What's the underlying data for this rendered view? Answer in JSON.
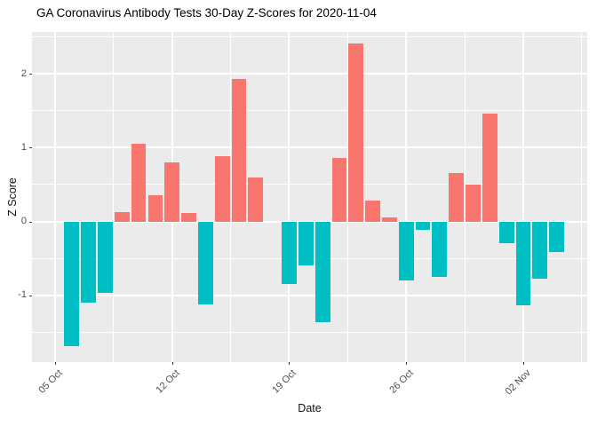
{
  "title": "GA Coronavirus Antibody Tests 30-Day Z-Scores for 2020-11-04",
  "chart_data": {
    "type": "bar",
    "title": "GA Coronavirus Antibody Tests 30-Day Z-Scores for 2020-11-04",
    "xlabel": "Date",
    "ylabel": "Z Score",
    "x_tick_labels": [
      "05 Oct",
      "12 Oct",
      "19 Oct",
      "26 Oct",
      "02 Nov"
    ],
    "y_tick_labels": [
      "-1",
      "0",
      "1",
      "2"
    ],
    "y_tick_values": [
      -1,
      0,
      1,
      2
    ],
    "y_minor_tick_values": [
      -1.5,
      -0.5,
      0.5,
      1.5,
      2.5
    ],
    "ylim": [
      -1.91,
      2.57
    ],
    "grid": "white major and minor gridlines on gray panel",
    "legend_position": "none",
    "dates": [
      "2020-10-06",
      "2020-10-07",
      "2020-10-08",
      "2020-10-09",
      "2020-10-10",
      "2020-10-11",
      "2020-10-12",
      "2020-10-13",
      "2020-10-14",
      "2020-10-15",
      "2020-10-16",
      "2020-10-17",
      "2020-10-18",
      "2020-10-19",
      "2020-10-20",
      "2020-10-21",
      "2020-10-22",
      "2020-10-23",
      "2020-10-24",
      "2020-10-25",
      "2020-10-26",
      "2020-10-27",
      "2020-10-28",
      "2020-10-29",
      "2020-10-30",
      "2020-10-31",
      "2020-11-01",
      "2020-11-02",
      "2020-11-03",
      "2020-11-04"
    ],
    "values": [
      -1.69,
      -1.1,
      -0.97,
      0.13,
      1.05,
      0.36,
      0.8,
      0.11,
      -1.13,
      0.88,
      1.93,
      0.6,
      0.0,
      -0.85,
      -0.6,
      -1.36,
      0.86,
      2.41,
      0.28,
      0.05,
      -0.8,
      -0.11,
      -0.75,
      0.66,
      0.5,
      1.46,
      -0.29,
      -1.14,
      -0.78,
      -0.42
    ],
    "positive_color": "#F8766D",
    "negative_color": "#00BFC4",
    "panel_background": "#EBEBEB",
    "gridline_color": "#FFFFFF",
    "tick_label_color": "#4d4d4d"
  }
}
